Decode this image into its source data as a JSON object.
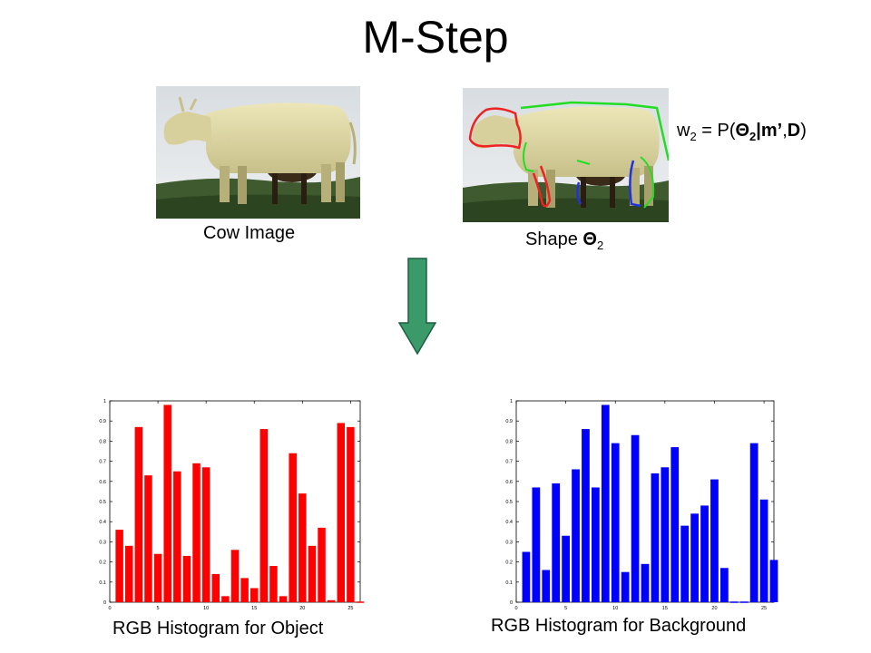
{
  "title": "M-Step",
  "cow_caption": "Cow Image",
  "shape_caption_prefix": "Shape ",
  "shape_caption_theta": "Θ",
  "shape_caption_sub": "2",
  "formula": {
    "w": "w",
    "w_sub": "2",
    "eq": " = P(",
    "theta": "Θ",
    "theta_sub": "2",
    "bar_m": "|m’",
    "comma": ",",
    "D": "D",
    "close": ")"
  },
  "hist_object_caption": "RGB Histogram for Object",
  "hist_background_caption": "RGB Histogram for Background",
  "colors": {
    "object": "#ff0000",
    "background": "#0000ff",
    "arrow": "#3a9a6a",
    "arrow_stroke": "#1f5f3f"
  },
  "chart_data": [
    {
      "type": "bar",
      "x": [
        1,
        2,
        3,
        4,
        5,
        6,
        7,
        8,
        9,
        10,
        11,
        12,
        13,
        14,
        15,
        16,
        17,
        18,
        19,
        20,
        21,
        22,
        23,
        24,
        25,
        26
      ],
      "values": [
        0.36,
        0.28,
        0.87,
        0.63,
        0.24,
        0.98,
        0.65,
        0.23,
        0.69,
        0.67,
        0.14,
        0.03,
        0.26,
        0.12,
        0.07,
        0.86,
        0.18,
        0.03,
        0.74,
        0.54,
        0.28,
        0.37,
        0.01,
        0.89,
        0.87,
        0.0
      ],
      "xlim": [
        0,
        26
      ],
      "ylim": [
        0,
        1
      ],
      "xticks": [
        "0",
        "5",
        "10",
        "15",
        "20",
        "25"
      ],
      "yticks": [
        "0",
        "0.1",
        "0.2",
        "0.3",
        "0.4",
        "0.5",
        "0.6",
        "0.7",
        "0.8",
        "0.9",
        "1"
      ],
      "color": "#ff0000"
    },
    {
      "type": "bar",
      "x": [
        1,
        2,
        3,
        4,
        5,
        6,
        7,
        8,
        9,
        10,
        11,
        12,
        13,
        14,
        15,
        16,
        17,
        18,
        19,
        20,
        21,
        22,
        23,
        24,
        25,
        26
      ],
      "values": [
        0.25,
        0.57,
        0.16,
        0.59,
        0.33,
        0.66,
        0.86,
        0.57,
        0.98,
        0.79,
        0.15,
        0.83,
        0.19,
        0.64,
        0.67,
        0.77,
        0.38,
        0.44,
        0.48,
        0.61,
        0.17,
        0.0,
        0.0,
        0.79,
        0.51,
        0.21
      ],
      "xlim": [
        0,
        26
      ],
      "ylim": [
        0,
        1
      ],
      "xticks": [
        "0",
        "5",
        "10",
        "15",
        "20",
        "25"
      ],
      "yticks": [
        "0",
        "0.1",
        "0.2",
        "0.3",
        "0.4",
        "0.5",
        "0.6",
        "0.7",
        "0.8",
        "0.9",
        "1"
      ],
      "color": "#0000ff"
    }
  ]
}
